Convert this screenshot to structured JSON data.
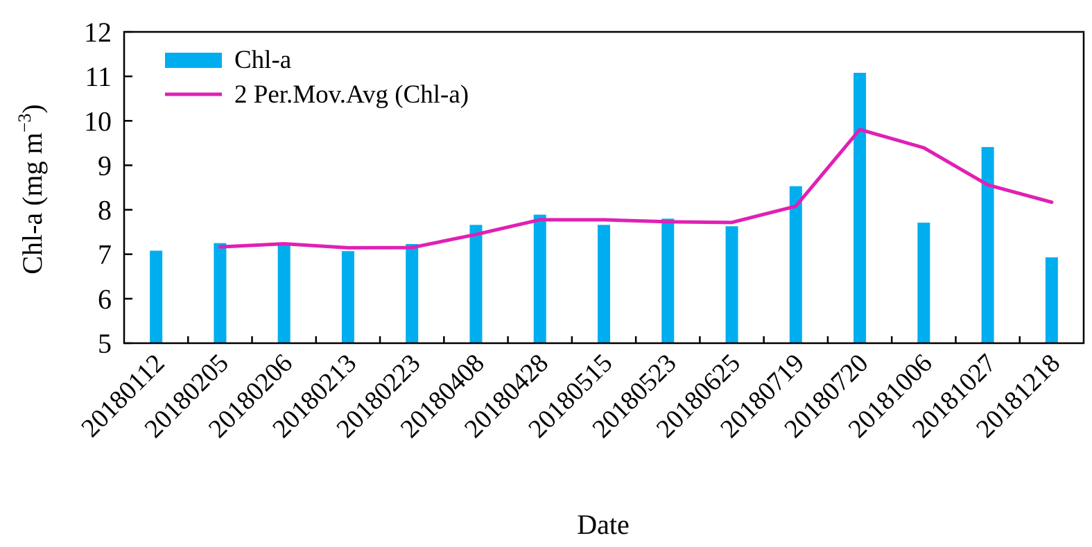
{
  "chart_data": {
    "type": "bar",
    "title": "",
    "xlabel": "Date",
    "ylabel": {
      "main": "Chl-a (mg m",
      "superscript": "−3",
      "close": ")"
    },
    "ylim": [
      5,
      12
    ],
    "yticks": [
      "5",
      "6",
      "7",
      "8",
      "9",
      "10",
      "11",
      "12"
    ],
    "grid": false,
    "legend_position": "top-left",
    "categories": [
      "20180112",
      "20180205",
      "20180206",
      "20180213",
      "20180223",
      "20180408",
      "20180428",
      "20180515",
      "20180523",
      "20180625",
      "20180719",
      "20180720",
      "20181006",
      "20181027",
      "20181218"
    ],
    "series": [
      {
        "name": "Chl-a",
        "type": "bar",
        "color": "#00aeef",
        "values": [
          7.08,
          7.25,
          7.22,
          7.07,
          7.23,
          7.66,
          7.89,
          7.66,
          7.8,
          7.63,
          8.53,
          11.08,
          7.71,
          9.41,
          6.93
        ]
      },
      {
        "name": "2 Per.Mov.Avg (Chl-a)",
        "type": "line",
        "color": "#e020b4",
        "values": [
          null,
          7.165,
          7.235,
          7.145,
          7.15,
          7.445,
          7.775,
          7.775,
          7.73,
          7.715,
          8.08,
          9.805,
          9.395,
          8.56,
          8.17
        ]
      }
    ]
  }
}
